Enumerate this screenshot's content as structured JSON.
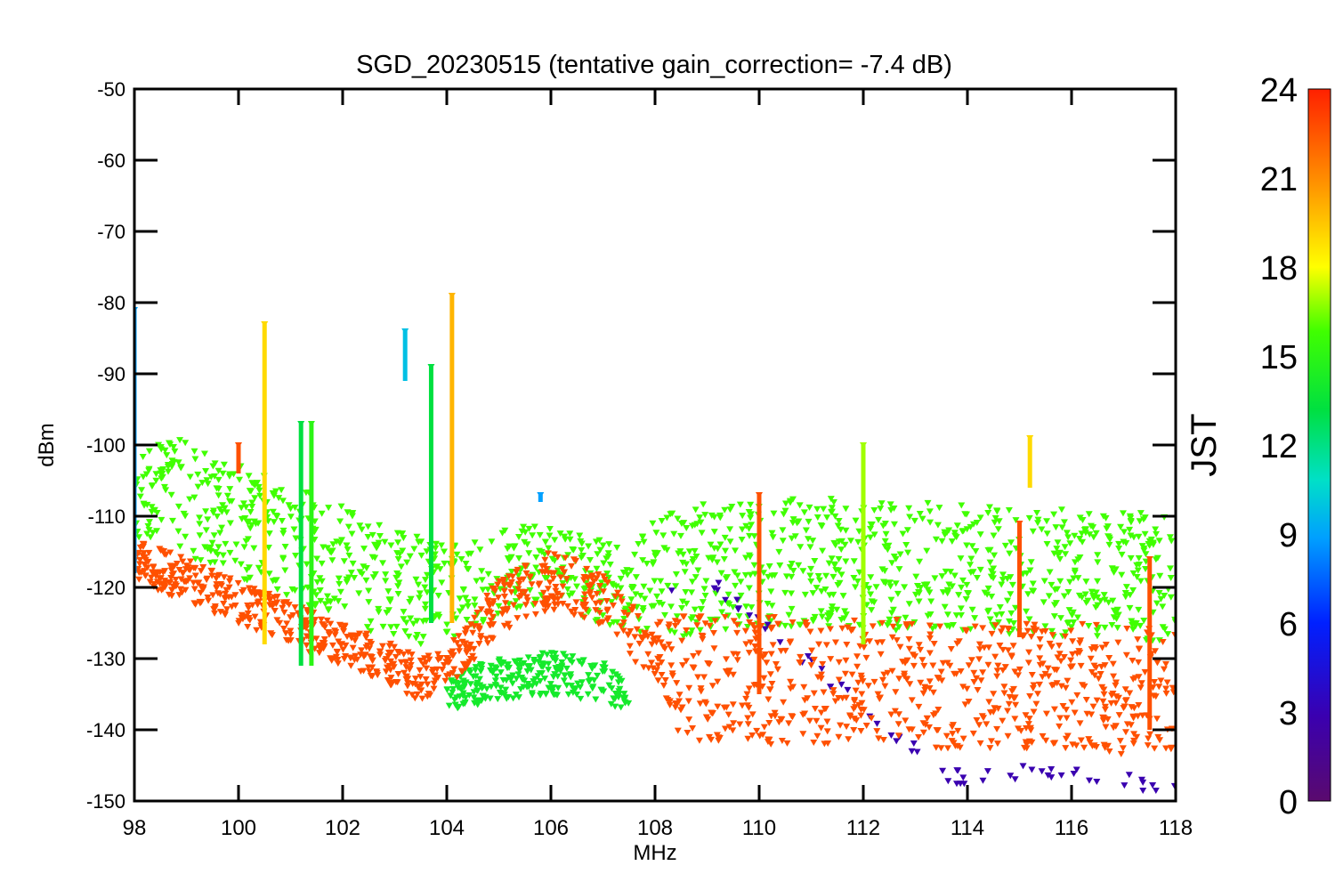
{
  "chart_data": {
    "type": "scatter",
    "title": "SGD_20230515 (tentative gain_correction= -7.4 dB)",
    "xlabel": "MHz",
    "ylabel": "dBm",
    "xlim": [
      98,
      118
    ],
    "ylim": [
      -150,
      -50
    ],
    "xticks": [
      98,
      100,
      102,
      104,
      106,
      108,
      110,
      112,
      114,
      116,
      118
    ],
    "yticks": [
      -50,
      -60,
      -70,
      -80,
      -90,
      -100,
      -110,
      -120,
      -130,
      -140,
      -150
    ],
    "grid": false,
    "colorbar": {
      "label": "JST",
      "range": [
        0,
        24
      ],
      "ticks": [
        0,
        3,
        6,
        9,
        12,
        15,
        18,
        21,
        24
      ],
      "colormap": "rainbow"
    },
    "series": [
      {
        "color_value": 23,
        "x": [
          98.0,
          98.5,
          99.0,
          99.5,
          100.0,
          100.5,
          101.0,
          101.5,
          102.0,
          102.5,
          103.0,
          103.5,
          104.0,
          104.5,
          105.0,
          105.5,
          106.0,
          106.5,
          107.0,
          107.5,
          108.0,
          108.5,
          109.0,
          109.5,
          110.0,
          110.5,
          111.0,
          111.5,
          112.0,
          112.5,
          113.0,
          113.5,
          114.0,
          114.5,
          115.0,
          115.5,
          116.0,
          116.5,
          117.0,
          117.5,
          118.0
        ],
        "y": [
          -116,
          -117.5,
          -119,
          -120.5,
          -122,
          -123.5,
          -125,
          -126.5,
          -128,
          -129.5,
          -131,
          -133,
          -131,
          -127,
          -123,
          -120.5,
          -119,
          -120,
          -122,
          -126,
          -129,
          -133,
          -133,
          -133,
          -133,
          -133,
          -133,
          -133,
          -133.5,
          -133.5,
          -133.5,
          -134,
          -134,
          -134,
          -134,
          -134,
          -134,
          -134,
          -134.5,
          -134.5,
          -134.5
        ],
        "spread": [
          3,
          3,
          3,
          3,
          3,
          3,
          3,
          3,
          3,
          3,
          3,
          3,
          3,
          3.5,
          4,
          4,
          4,
          4,
          4,
          4,
          4,
          9,
          9,
          9,
          9,
          9,
          9,
          9,
          9,
          9,
          9,
          9,
          9,
          9,
          9,
          9,
          9,
          9,
          9,
          9,
          9
        ]
      },
      {
        "color_value": 16,
        "x": [
          98.0,
          98.5,
          99.0,
          99.5,
          100.0,
          100.5,
          101.0,
          101.5,
          102.0,
          102.5,
          103.0,
          103.5,
          104.0,
          104.5,
          105.0,
          105.5,
          106.0,
          106.5,
          107.0,
          107.5,
          108.0,
          108.5,
          109.0,
          109.5,
          110.0,
          110.5,
          111.0,
          111.5,
          112.0,
          112.5,
          113.0,
          113.5,
          114.0,
          114.5,
          115.0,
          115.5,
          116.0,
          116.5,
          117.0,
          117.5,
          118.0
        ],
        "y": [
          -105,
          -106,
          -107.5,
          -109,
          -110.5,
          -112,
          -113.5,
          -115,
          -116.5,
          -118,
          -119.5,
          -121,
          -120.5,
          -119.5,
          -118,
          -117,
          -117,
          -118,
          -119.5,
          -120,
          -118.5,
          -118,
          -117,
          -117,
          -116.5,
          -116.5,
          -116.5,
          -116.5,
          -117,
          -117,
          -117,
          -117,
          -117.5,
          -117.5,
          -118,
          -118,
          -118,
          -118,
          -118,
          -118.5,
          -118.5
        ],
        "spread": [
          8,
          8,
          8,
          8,
          8,
          8,
          8,
          8,
          8,
          8,
          8,
          8,
          7,
          6,
          6,
          6,
          6,
          6,
          6,
          6,
          8,
          9,
          9,
          9,
          9,
          9,
          9,
          9,
          9,
          9,
          9,
          9,
          9,
          9,
          9,
          9,
          9,
          9,
          9,
          9,
          9
        ]
      },
      {
        "color_value": 14,
        "x": [
          104.0,
          104.5,
          105.0,
          105.5,
          106.0,
          106.5,
          107.0,
          107.5
        ],
        "y": [
          -135,
          -134,
          -133,
          -132.5,
          -132,
          -132.5,
          -133.5,
          -135
        ],
        "spread": [
          2,
          3,
          3,
          3,
          3,
          3,
          3,
          2
        ]
      },
      {
        "color_value": 3,
        "x": [
          108.3,
          108.8,
          109.3,
          113.5,
          114.0,
          114.5,
          115.5,
          116.0,
          117.0,
          117.5,
          118.0
        ],
        "y": [
          -120,
          -119,
          -120.5,
          -146,
          -147,
          -146,
          -146,
          -146.5,
          -147,
          -148,
          -148.5
        ],
        "spread": [
          1,
          1,
          1,
          1,
          1,
          1,
          1,
          1,
          1,
          1,
          1
        ]
      }
    ],
    "spikes": [
      {
        "x": 98.0,
        "top": -81,
        "bottom": -118,
        "color_value": 9
      },
      {
        "x": 100.0,
        "top": -100,
        "bottom": -104,
        "color_value": 23
      },
      {
        "x": 100.5,
        "top": -83,
        "bottom": -128,
        "color_value": 19
      },
      {
        "x": 101.2,
        "top": -97,
        "bottom": -131,
        "color_value": 13
      },
      {
        "x": 101.4,
        "top": -97,
        "bottom": -131,
        "color_value": 15
      },
      {
        "x": 103.2,
        "top": -84,
        "bottom": -91,
        "color_value": 10
      },
      {
        "x": 103.7,
        "top": -89,
        "bottom": -125,
        "color_value": 13
      },
      {
        "x": 104.1,
        "top": -79,
        "bottom": -125,
        "color_value": 20
      },
      {
        "x": 105.8,
        "top": -107,
        "bottom": -108,
        "color_value": 9
      },
      {
        "x": 110.0,
        "top": -107,
        "bottom": -135,
        "color_value": 23
      },
      {
        "x": 112.0,
        "top": -100,
        "bottom": -128,
        "color_value": 17
      },
      {
        "x": 115.0,
        "top": -111,
        "bottom": -127,
        "color_value": 23
      },
      {
        "x": 115.2,
        "top": -99,
        "bottom": -106,
        "color_value": 19
      },
      {
        "x": 117.5,
        "top": -116,
        "bottom": -140,
        "color_value": 23
      }
    ]
  }
}
